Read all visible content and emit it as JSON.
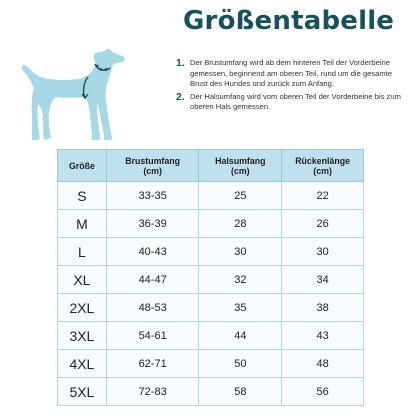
{
  "title": "Größentabelle",
  "icons": {
    "dog": "dog-silhouette-icon",
    "neck_strap": "neck-measure-icon",
    "chest_strap": "chest-measure-icon"
  },
  "colors": {
    "title": "#17525a",
    "dog": "#a7d8e6",
    "header_bg": "#bfe1ef",
    "measure_line": "#17525a"
  },
  "instructions": [
    {
      "number": "1.",
      "text": "Der Brustumfang wird ab dem hinteren Teil der Vorderbeine gemessen, beginnend am oberen Teil, rund um die gesamte Brust des Hundes und zurück zum Anfang."
    },
    {
      "number": "2.",
      "text": "Der Halsumfang wird vom oberen Teil der Vorderbeine bis zum oberen Hals gemessen."
    }
  ],
  "table": {
    "headers": {
      "size": "Größe",
      "chest": "Brustumfang",
      "chest_unit": "(cm)",
      "neck": "Halsumfang",
      "neck_unit": "(cm)",
      "back": "Rückenlänge",
      "back_unit": "(cm)"
    },
    "rows": [
      {
        "size": "S",
        "chest": "33-35",
        "neck": "25",
        "back": "22"
      },
      {
        "size": "M",
        "chest": "36-39",
        "neck": "28",
        "back": "26"
      },
      {
        "size": "L",
        "chest": "40-43",
        "neck": "30",
        "back": "30"
      },
      {
        "size": "XL",
        "chest": "44-47",
        "neck": "32",
        "back": "34"
      },
      {
        "size": "2XL",
        "chest": "48-53",
        "neck": "35",
        "back": "38"
      },
      {
        "size": "3XL",
        "chest": "54-61",
        "neck": "44",
        "back": "43"
      },
      {
        "size": "4XL",
        "chest": "62-71",
        "neck": "50",
        "back": "48"
      },
      {
        "size": "5XL",
        "chest": "72-83",
        "neck": "58",
        "back": "56"
      }
    ]
  }
}
